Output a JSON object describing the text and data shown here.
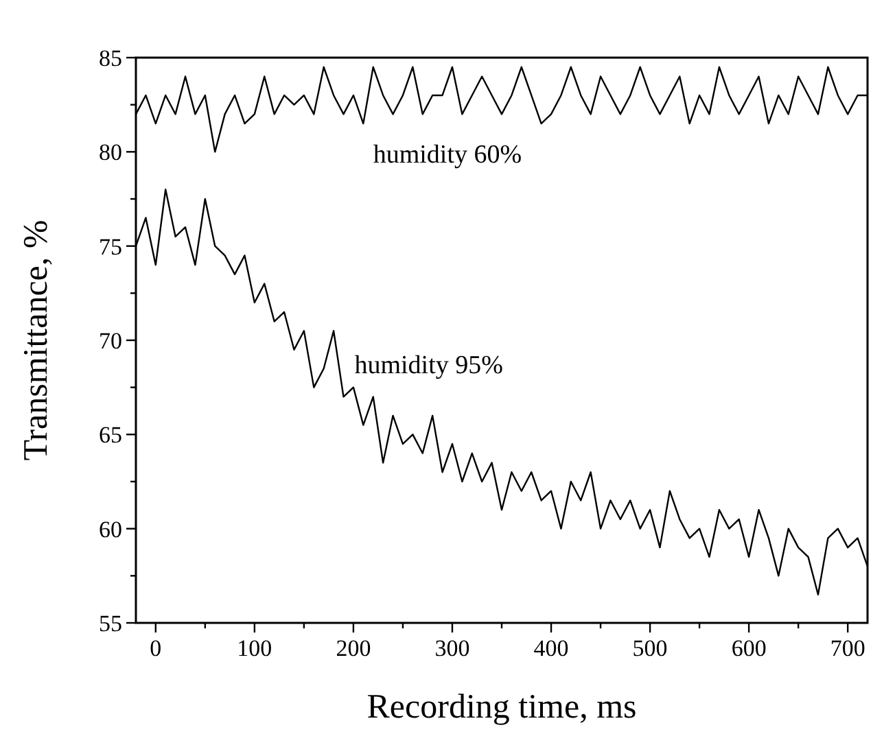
{
  "chart_data": {
    "type": "line",
    "xlabel": "Recording time, ms",
    "ylabel": "Transmittance, %",
    "x": [
      -20,
      -10,
      0,
      10,
      20,
      30,
      40,
      50,
      60,
      70,
      80,
      90,
      100,
      110,
      120,
      130,
      140,
      150,
      160,
      170,
      180,
      190,
      200,
      210,
      220,
      230,
      240,
      250,
      260,
      270,
      280,
      290,
      300,
      310,
      320,
      330,
      340,
      350,
      360,
      370,
      380,
      390,
      400,
      410,
      420,
      430,
      440,
      450,
      460,
      470,
      480,
      490,
      500,
      510,
      520,
      530,
      540,
      550,
      560,
      570,
      580,
      590,
      600,
      610,
      620,
      630,
      640,
      650,
      660,
      670,
      680,
      690,
      700,
      710,
      720
    ],
    "series": [
      {
        "name": "humidity 60%",
        "color": "#000000",
        "values": [
          82,
          83,
          81.5,
          83,
          82,
          84,
          82,
          83,
          80,
          82,
          83,
          81.5,
          82,
          84,
          82,
          83,
          82.5,
          83,
          82,
          84.5,
          83,
          82,
          83,
          81.5,
          84.5,
          83,
          82,
          83,
          84.5,
          82,
          83,
          83,
          84.5,
          82,
          83,
          84,
          83,
          82,
          83,
          84.5,
          83,
          81.5,
          82,
          83,
          84.5,
          83,
          82,
          84,
          83,
          82,
          83,
          84.5,
          83,
          82,
          83,
          84,
          81.5,
          83,
          82,
          84.5,
          83,
          82,
          83,
          84,
          81.5,
          83,
          82,
          84,
          83,
          82,
          84.5,
          83,
          82,
          83,
          83
        ]
      },
      {
        "name": "humidity 95%",
        "color": "#000000",
        "values": [
          75,
          76.5,
          74,
          78,
          75.5,
          76,
          74,
          77.5,
          75,
          74.5,
          73.5,
          74.5,
          72,
          73,
          71,
          71.5,
          69.5,
          70.5,
          67.5,
          68.5,
          70.5,
          67,
          67.5,
          65.5,
          67,
          63.5,
          66,
          64.5,
          65,
          64,
          66,
          63,
          64.5,
          62.5,
          64,
          62.5,
          63.5,
          61,
          63,
          62,
          63,
          61.5,
          62,
          60,
          62.5,
          61.5,
          63,
          60,
          61.5,
          60.5,
          61.5,
          60,
          61,
          59,
          62,
          60.5,
          59.5,
          60,
          58.5,
          61,
          60,
          60.5,
          58.5,
          61,
          59.5,
          57.5,
          60,
          59,
          58.5,
          56.5,
          59.5,
          60,
          59,
          59.5,
          58
        ]
      }
    ],
    "xlim": [
      -20,
      720
    ],
    "xticks": [
      0,
      {
        "value": 50,
        "label": null
      },
      100,
      {
        "value": 150,
        "label": null
      },
      200,
      {
        "value": 250,
        "label": null
      },
      300,
      {
        "value": 350,
        "label": null
      },
      400,
      {
        "value": 450,
        "label": null
      },
      500,
      {
        "value": 550,
        "label": null
      },
      600,
      {
        "value": 650,
        "label": null
      },
      700
    ],
    "ylim": [
      55,
      85
    ],
    "yticks": [
      55,
      {
        "value": 57.5,
        "label": null
      },
      60,
      {
        "value": 62.5,
        "label": null
      },
      65,
      {
        "value": 67.5,
        "label": null
      },
      70,
      {
        "value": 72.5,
        "label": null
      },
      75,
      {
        "value": 77.5,
        "label": null
      },
      80,
      {
        "value": 82.5,
        "label": null
      },
      85
    ],
    "grid": false,
    "marker": "none",
    "line_style": "solid"
  }
}
